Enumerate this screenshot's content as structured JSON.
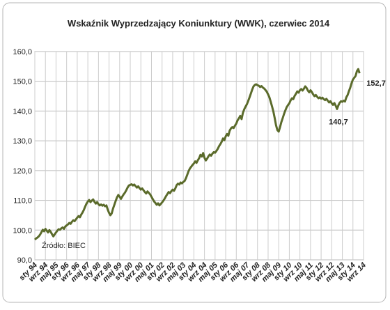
{
  "chart_data": {
    "type": "line",
    "title": "Wskaźnik Wyprzedzający Koniunktury (WWK), czerwiec 2014",
    "source": "Źródło: BIEC",
    "categories": [
      "sty 94",
      null,
      null,
      null,
      null,
      null,
      null,
      null,
      "wrz 94",
      null,
      null,
      null,
      null,
      null,
      null,
      null,
      "maj 95",
      null,
      null,
      null,
      null,
      null,
      null,
      null,
      "sty 96",
      null,
      null,
      null,
      null,
      null,
      null,
      null,
      "wrz 96",
      null,
      null,
      null,
      null,
      null,
      null,
      null,
      "maj 97",
      null,
      null,
      null,
      null,
      null,
      null,
      null,
      "sty 98",
      null,
      null,
      null,
      null,
      null,
      null,
      null,
      "wrz 98",
      null,
      null,
      null,
      null,
      null,
      null,
      null,
      "maj 99",
      null,
      null,
      null,
      null,
      null,
      null,
      null,
      "sty 00",
      null,
      null,
      null,
      null,
      null,
      null,
      null,
      "wrz 00",
      null,
      null,
      null,
      null,
      null,
      null,
      null,
      "maj 01",
      null,
      null,
      null,
      null,
      null,
      null,
      null,
      "sty 02",
      null,
      null,
      null,
      null,
      null,
      null,
      null,
      "wrz 02",
      null,
      null,
      null,
      null,
      null,
      null,
      null,
      "maj 03",
      null,
      null,
      null,
      null,
      null,
      null,
      null,
      "sty 04",
      null,
      null,
      null,
      null,
      null,
      null,
      null,
      "wrz 04",
      null,
      null,
      null,
      null,
      null,
      null,
      null,
      "maj 05",
      null,
      null,
      null,
      null,
      null,
      null,
      null,
      "sty 06",
      null,
      null,
      null,
      null,
      null,
      null,
      null,
      "wrz 06",
      null,
      null,
      null,
      null,
      null,
      null,
      null,
      "maj 07",
      null,
      null,
      null,
      null,
      null,
      null,
      null,
      "sty 08",
      null,
      null,
      null,
      null,
      null,
      null,
      null,
      "wrz 08",
      null,
      null,
      null,
      null,
      null,
      null,
      null,
      "maj 09",
      null,
      null,
      null,
      null,
      null,
      null,
      null,
      "sty 10",
      null,
      null,
      null,
      null,
      null,
      null,
      null,
      "wrz 10",
      null,
      null,
      null,
      null,
      null,
      null,
      null,
      "maj 11",
      null,
      null,
      null,
      null,
      null,
      null,
      null,
      "sty 12",
      null,
      null,
      null,
      null,
      null,
      null,
      null,
      "wrz 12",
      null,
      null,
      null,
      null,
      null,
      null,
      null,
      "maj 13",
      null,
      null,
      null,
      null,
      null,
      null,
      null,
      "sty 14",
      null,
      null,
      null,
      null,
      null,
      null,
      null,
      "wrz 14"
    ],
    "values": [
      96.8,
      97.2,
      97.5,
      97.9,
      98.5,
      99.3,
      100.1,
      99.6,
      100.4,
      99.8,
      99.2,
      100.0,
      99.4,
      98.6,
      97.9,
      98.6,
      99.2,
      99.8,
      100.3,
      100.1,
      100.6,
      100.9,
      100.4,
      101.2,
      101.6,
      101.9,
      102.4,
      102.1,
      102.8,
      103.3,
      103.0,
      103.6,
      104.2,
      104.7,
      104.3,
      105.2,
      105.9,
      106.8,
      107.9,
      108.9,
      109.6,
      110.1,
      109.4,
      109.9,
      110.3,
      109.5,
      108.9,
      109.4,
      108.7,
      108.3,
      108.6,
      108.2,
      108.5,
      108.0,
      108.3,
      106.9,
      105.8,
      105.0,
      105.6,
      107.2,
      108.5,
      109.8,
      111.0,
      111.8,
      111.2,
      110.5,
      111.3,
      112.0,
      112.6,
      113.4,
      114.3,
      115.0,
      115.2,
      115.4,
      115.0,
      115.3,
      114.8,
      114.3,
      114.7,
      114.1,
      113.6,
      114.0,
      113.4,
      112.8,
      112.3,
      113.0,
      112.5,
      112.0,
      111.2,
      110.4,
      109.6,
      109.1,
      108.5,
      109.0,
      108.3,
      108.8,
      109.3,
      109.9,
      110.6,
      111.4,
      112.1,
      112.8,
      112.4,
      113.1,
      113.6,
      113.2,
      114.0,
      115.1,
      115.6,
      115.3,
      116.0,
      115.7,
      116.2,
      116.5,
      117.4,
      118.6,
      119.8,
      120.7,
      121.3,
      121.9,
      122.4,
      123.1,
      122.6,
      123.5,
      124.2,
      125.3,
      124.7,
      125.9,
      124.3,
      123.4,
      124.0,
      124.8,
      125.4,
      125.0,
      125.7,
      126.2,
      126.0,
      126.6,
      127.3,
      128.2,
      128.9,
      129.7,
      130.8,
      130.2,
      131.5,
      132.3,
      131.7,
      133.4,
      134.2,
      134.6,
      134.3,
      135.1,
      135.8,
      136.9,
      137.6,
      138.4,
      137.3,
      139.4,
      140.6,
      141.5,
      142.3,
      143.4,
      144.6,
      145.9,
      147.2,
      148.3,
      148.8,
      149.0,
      148.7,
      148.5,
      148.1,
      148.4,
      147.9,
      147.6,
      147.1,
      146.5,
      145.6,
      144.6,
      143.1,
      141.5,
      139.8,
      137.6,
      135.2,
      133.6,
      133.1,
      134.6,
      136.3,
      137.6,
      139.0,
      140.2,
      141.3,
      142.0,
      142.6,
      143.6,
      144.3,
      144.0,
      145.1,
      145.8,
      146.6,
      146.2,
      147.0,
      147.4,
      146.9,
      147.5,
      148.3,
      147.8,
      146.9,
      146.3,
      147.0,
      146.4,
      145.6,
      145.0,
      145.4,
      144.8,
      144.3,
      144.6,
      144.2,
      144.5,
      144.0,
      143.7,
      144.1,
      143.5,
      142.9,
      143.3,
      142.6,
      142.1,
      142.7,
      141.8,
      140.7,
      141.9,
      142.8,
      143.3,
      143.1,
      143.5,
      143.2,
      144.6,
      145.4,
      146.7,
      147.9,
      149.4,
      150.6,
      151.2,
      151.8,
      153.4,
      154.1,
      152.7,
      null,
      null,
      null
    ],
    "color": "#5b6b2b",
    "annotations": [
      {
        "text": "140,7",
        "value": 140.7
      },
      {
        "text": "152,7",
        "value": 152.7
      }
    ],
    "ylim": [
      90,
      160
    ],
    "yticks": [
      {
        "value": 90,
        "label": "90,0"
      },
      {
        "value": 100,
        "label": "100,0"
      },
      {
        "value": 110,
        "label": "110,0"
      },
      {
        "value": 120,
        "label": "120,0"
      },
      {
        "value": 130,
        "label": "130,0"
      },
      {
        "value": 140,
        "label": "140,0"
      },
      {
        "value": 150,
        "label": "150,0"
      },
      {
        "value": 160,
        "label": "160,0"
      }
    ],
    "grid": true
  }
}
